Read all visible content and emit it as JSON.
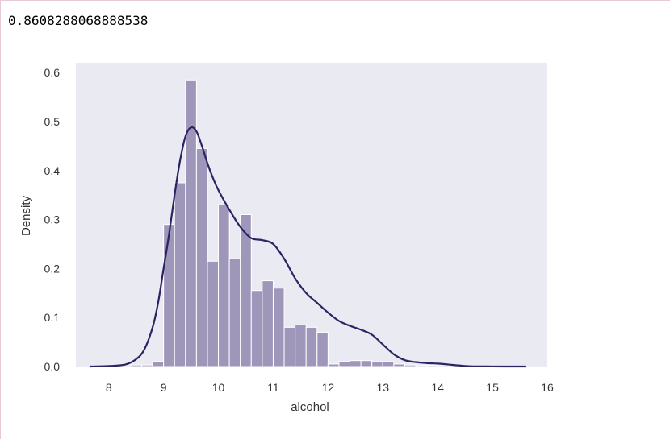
{
  "output": {
    "value": "0.8608288068888538"
  },
  "chart_data": {
    "type": "bar",
    "xlabel": "alcohol",
    "ylabel": "Density",
    "xlim": [
      7.4,
      16
    ],
    "ylim": [
      0,
      0.62
    ],
    "xticks": [
      "8",
      "9",
      "10",
      "11",
      "12",
      "13",
      "14",
      "15",
      "16"
    ],
    "yticks": [
      "0.0",
      "0.1",
      "0.2",
      "0.3",
      "0.4",
      "0.5",
      "0.6"
    ],
    "grid": false,
    "colors": {
      "plot_bg": "#eaeaf2",
      "bar": "#9f97b9",
      "kde": "#2d2262"
    },
    "histogram": {
      "bin_edges": [
        8.4,
        8.6,
        8.8,
        9.0,
        9.2,
        9.4,
        9.6,
        9.8,
        10.0,
        10.2,
        10.4,
        10.6,
        10.8,
        11.0,
        11.2,
        11.4,
        11.6,
        11.8,
        12.0,
        12.2,
        12.4,
        12.6,
        12.8,
        13.0,
        13.2,
        13.4,
        13.6,
        13.8,
        14.0,
        14.2
      ],
      "density": [
        0.003,
        0.003,
        0.01,
        0.29,
        0.375,
        0.585,
        0.445,
        0.215,
        0.33,
        0.22,
        0.31,
        0.155,
        0.175,
        0.16,
        0.08,
        0.085,
        0.08,
        0.07,
        0.005,
        0.01,
        0.012,
        0.012,
        0.01,
        0.01,
        0.005,
        0.003,
        0.002,
        0.002,
        0.002
      ]
    },
    "kde": {
      "x": [
        7.65,
        8.0,
        8.3,
        8.5,
        8.65,
        8.8,
        8.9,
        9.0,
        9.1,
        9.2,
        9.3,
        9.4,
        9.5,
        9.6,
        9.7,
        9.8,
        9.9,
        10.0,
        10.2,
        10.4,
        10.6,
        10.8,
        11.0,
        11.2,
        11.4,
        11.6,
        11.8,
        12.0,
        12.2,
        12.4,
        12.6,
        12.8,
        13.0,
        13.2,
        13.4,
        13.6,
        13.8,
        14.0,
        14.2,
        14.4,
        14.6,
        15.0,
        15.3,
        15.6
      ],
      "y": [
        0.0,
        0.001,
        0.004,
        0.015,
        0.035,
        0.08,
        0.13,
        0.2,
        0.27,
        0.35,
        0.42,
        0.47,
        0.488,
        0.48,
        0.45,
        0.415,
        0.385,
        0.36,
        0.32,
        0.285,
        0.262,
        0.258,
        0.25,
        0.22,
        0.18,
        0.15,
        0.13,
        0.11,
        0.093,
        0.083,
        0.075,
        0.065,
        0.045,
        0.025,
        0.013,
        0.009,
        0.007,
        0.006,
        0.004,
        0.002,
        0.0005,
        0.0001,
        0.0,
        0.0
      ]
    }
  }
}
